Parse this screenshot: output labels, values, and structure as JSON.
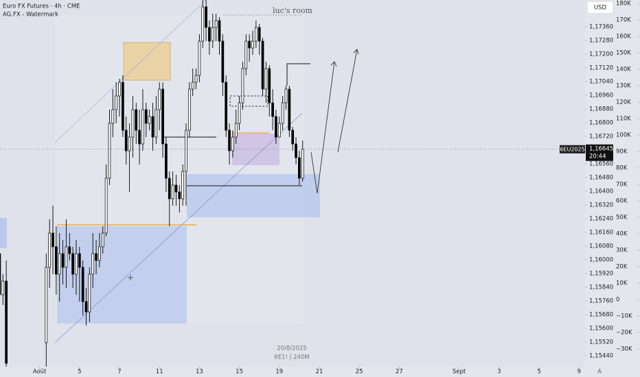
{
  "chart_data": {
    "type": "candlestick",
    "title": "Euro FX Futures · 4h · CME",
    "subtitle": "AG.FX - Watermark",
    "watermark": "luc's room",
    "currency": "USD",
    "symbol": "6EU2025",
    "countdown": "20:44",
    "current_price": {
      "value": 1.16645,
      "label": "1,16645"
    },
    "cursor_date": "20/8/2025",
    "footer": "6E1! | 240M",
    "scale_mode": "A",
    "up_color": "#ffffff",
    "down_color": "#000000",
    "x": [
      0,
      1,
      2,
      14,
      15,
      16,
      17,
      18,
      19,
      20,
      21,
      22,
      23,
      24,
      25,
      26,
      27,
      28,
      29,
      30,
      31,
      32,
      33,
      34,
      35,
      36,
      37,
      38,
      39,
      40,
      41,
      42,
      43,
      44,
      45,
      46,
      47,
      48,
      49,
      50,
      51,
      52,
      53,
      54,
      55,
      56,
      57,
      58,
      59,
      60,
      61,
      62,
      63,
      64,
      65,
      66,
      67,
      68,
      69,
      70,
      71,
      72,
      73,
      74,
      75,
      76,
      77,
      78,
      79,
      80,
      81,
      82,
      83,
      84,
      85,
      86,
      87,
      88,
      89,
      90,
      91
    ],
    "open": [
      1.16036,
      1.15796,
      1.15876,
      1.15516,
      1.15956,
      1.16156,
      1.16076,
      1.15916,
      1.16036,
      1.15956,
      1.16076,
      1.16036,
      1.15916,
      1.16036,
      1.15956,
      1.15756,
      1.15696,
      1.15916,
      1.16036,
      1.15996,
      1.16076,
      1.16156,
      1.16476,
      1.16796,
      1.16876,
      1.16956,
      1.17036,
      1.16756,
      1.16636,
      1.16716,
      1.16876,
      1.16756,
      1.16676,
      1.16876,
      1.16796,
      1.16836,
      1.16716,
      1.16876,
      1.16996,
      1.16676,
      1.16476,
      1.16356,
      1.16436,
      1.16396,
      1.16356,
      1.16516,
      1.16756,
      1.16996,
      1.17036,
      1.17076,
      1.17276,
      1.17476,
      1.17356,
      1.17276,
      1.17356,
      1.17396,
      1.17276,
      1.17036,
      1.16756,
      1.16636,
      1.16716,
      1.16796,
      1.16916,
      1.17116,
      1.17276,
      1.17236,
      1.17276,
      1.17356,
      1.17276,
      1.16996,
      1.17116,
      1.16916,
      1.16836,
      1.16716,
      1.16796,
      1.16916,
      1.16996,
      1.16756,
      1.16676,
      1.16596,
      1.16476
    ],
    "high": [
      1.16056,
      1.15916,
      1.15996,
      1.16036,
      1.16236,
      1.16316,
      1.16196,
      1.16156,
      1.16116,
      1.16236,
      1.16156,
      1.16076,
      1.16116,
      1.16076,
      1.15996,
      1.15836,
      1.15956,
      1.16156,
      1.16116,
      1.16156,
      1.16196,
      1.16556,
      1.16876,
      1.16996,
      1.17036,
      1.17056,
      1.17076,
      1.16836,
      1.16796,
      1.16956,
      1.16916,
      1.16876,
      1.16996,
      1.16916,
      1.16876,
      1.16916,
      1.16956,
      1.17036,
      1.17036,
      1.16716,
      1.16516,
      1.16516,
      1.16496,
      1.16436,
      1.16556,
      1.16796,
      1.17036,
      1.17116,
      1.17116,
      1.17316,
      1.17516,
      1.17516,
      1.17396,
      1.17436,
      1.17436,
      1.17416,
      1.17316,
      1.17076,
      1.16796,
      1.16756,
      1.16876,
      1.16956,
      1.17156,
      1.17316,
      1.17316,
      1.17336,
      1.17396,
      1.17376,
      1.17296,
      1.17156,
      1.17136,
      1.16996,
      1.16876,
      1.16836,
      1.16956,
      1.17016,
      1.17016,
      1.16776,
      1.16716,
      1.16636,
      1.16696
    ],
    "low": [
      1.15756,
      1.15736,
      1.15336,
      1.15376,
      1.15836,
      1.15916,
      1.15796,
      1.15756,
      1.15856,
      1.15836,
      1.15996,
      1.15836,
      1.15796,
      1.15756,
      1.15676,
      1.15616,
      1.15636,
      1.15836,
      1.15916,
      1.15956,
      1.16036,
      1.16136,
      1.16436,
      1.16716,
      1.16796,
      1.16836,
      1.16716,
      1.16556,
      1.16396,
      1.16596,
      1.16676,
      1.16556,
      1.16636,
      1.16716,
      1.16756,
      1.16636,
      1.16676,
      1.16756,
      1.16596,
      1.16396,
      1.16196,
      1.16316,
      1.16316,
      1.16276,
      1.16316,
      1.16316,
      1.16716,
      1.16956,
      1.16996,
      1.17036,
      1.17236,
      1.17276,
      1.17196,
      1.17236,
      1.17276,
      1.17196,
      1.16956,
      1.16716,
      1.16556,
      1.16596,
      1.16676,
      1.16756,
      1.16876,
      1.17076,
      1.17156,
      1.17196,
      1.17236,
      1.17196,
      1.16956,
      1.16916,
      1.16836,
      1.16756,
      1.16676,
      1.16716,
      1.16756,
      1.16876,
      1.16716,
      1.16636,
      1.16556,
      1.16436,
      1.16456
    ],
    "close": [
      1.15796,
      1.15876,
      1.15396,
      1.15956,
      1.16156,
      1.16076,
      1.15916,
      1.16036,
      1.15956,
      1.16076,
      1.16036,
      1.15916,
      1.16036,
      1.15956,
      1.15756,
      1.15696,
      1.15916,
      1.16036,
      1.15996,
      1.16076,
      1.16156,
      1.16476,
      1.16796,
      1.16876,
      1.16956,
      1.17036,
      1.16756,
      1.16636,
      1.16716,
      1.16876,
      1.16756,
      1.16676,
      1.16876,
      1.16796,
      1.16836,
      1.16716,
      1.16876,
      1.16996,
      1.16676,
      1.16476,
      1.16356,
      1.16436,
      1.16396,
      1.16356,
      1.16516,
      1.16756,
      1.16996,
      1.17036,
      1.17076,
      1.17276,
      1.17476,
      1.17356,
      1.17276,
      1.17356,
      1.17396,
      1.17276,
      1.17036,
      1.16756,
      1.16636,
      1.16716,
      1.16796,
      1.16916,
      1.17116,
      1.17276,
      1.17236,
      1.17276,
      1.17356,
      1.17276,
      1.16996,
      1.17116,
      1.16916,
      1.16836,
      1.16716,
      1.16796,
      1.16916,
      1.16996,
      1.16756,
      1.16676,
      1.16596,
      1.16476,
      1.16645
    ],
    "xlim": [
      0.12,
      175.8
    ],
    "xticks": [
      {
        "value": 12,
        "label": "Août"
      },
      {
        "value": 24,
        "label": "5"
      },
      {
        "value": 36,
        "label": "7"
      },
      {
        "value": 48,
        "label": "11"
      },
      {
        "value": 60,
        "label": "13"
      },
      {
        "value": 72,
        "label": "15"
      },
      {
        "value": 84,
        "label": "19"
      },
      {
        "value": 96,
        "label": "21"
      },
      {
        "value": 108,
        "label": "25"
      },
      {
        "value": 120,
        "label": "27"
      },
      {
        "value": 138,
        "label": "Sept"
      },
      {
        "value": 150,
        "label": "3"
      },
      {
        "value": 162,
        "label": "5"
      },
      {
        "value": 174,
        "label": "9"
      }
    ],
    "ylim": [
      1.15376,
      1.17516
    ],
    "yticks": [
      {
        "value": 1.1736,
        "label": "1,17360"
      },
      {
        "value": 1.1728,
        "label": "1,17280"
      },
      {
        "value": 1.172,
        "label": "1,17200"
      },
      {
        "value": 1.1712,
        "label": "1,17120"
      },
      {
        "value": 1.1704,
        "label": "1,17040"
      },
      {
        "value": 1.1696,
        "label": "1,16960"
      },
      {
        "value": 1.1688,
        "label": "1,16880"
      },
      {
        "value": 1.168,
        "label": "1,16800"
      },
      {
        "value": 1.1672,
        "label": "1,16720"
      },
      {
        "value": 1.1656,
        "label": "1,16560"
      },
      {
        "value": 1.1648,
        "label": "1,16480"
      },
      {
        "value": 1.164,
        "label": "1,16400"
      },
      {
        "value": 1.1632,
        "label": "1,16320"
      },
      {
        "value": 1.1624,
        "label": "1,16240"
      },
      {
        "value": 1.1616,
        "label": "1,16160"
      },
      {
        "value": 1.1608,
        "label": "1,16080"
      },
      {
        "value": 1.16,
        "label": "1,16000"
      },
      {
        "value": 1.1592,
        "label": "1,15920"
      },
      {
        "value": 1.1584,
        "label": "1,15840"
      },
      {
        "value": 1.1576,
        "label": "1,15760"
      },
      {
        "value": 1.1568,
        "label": "1,15680"
      },
      {
        "value": 1.156,
        "label": "1,15600"
      },
      {
        "value": 1.1552,
        "label": "1,15520"
      },
      {
        "value": 1.1544,
        "label": "1,15440"
      }
    ],
    "y2lim": [
      -40833,
      182083
    ],
    "y2ticks": [
      {
        "value": 180000,
        "label": "180K"
      },
      {
        "value": 170000,
        "label": "170K"
      },
      {
        "value": 160000,
        "label": "160K"
      },
      {
        "value": 150000,
        "label": "150K"
      },
      {
        "value": 140000,
        "label": "140K"
      },
      {
        "value": 130000,
        "label": "130K"
      },
      {
        "value": 120000,
        "label": "120K"
      },
      {
        "value": 110000,
        "label": "110K"
      },
      {
        "value": 100000,
        "label": "100K"
      },
      {
        "value": 90000,
        "label": "90K"
      },
      {
        "value": 80000,
        "label": "80K"
      },
      {
        "value": 70000,
        "label": "70K"
      },
      {
        "value": 60000,
        "label": "60K"
      },
      {
        "value": 50000,
        "label": "50K"
      },
      {
        "value": 40000,
        "label": "40K"
      },
      {
        "value": 30000,
        "label": "30K"
      },
      {
        "value": 20000,
        "label": "20K"
      },
      {
        "value": 10000,
        "label": "10K"
      },
      0,
      {
        "value": -10000,
        "label": "−10K"
      },
      {
        "value": -20000,
        "label": "−20K"
      },
      {
        "value": -30000,
        "label": "−30K"
      }
    ]
  }
}
